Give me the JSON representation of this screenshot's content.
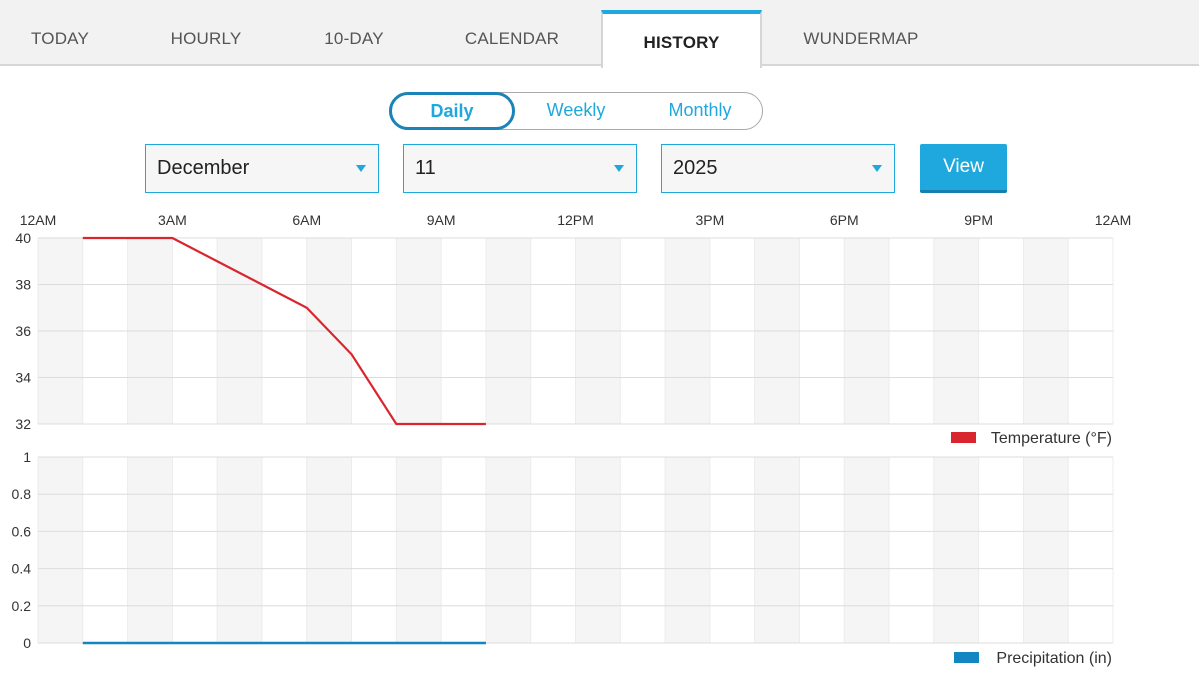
{
  "tabs": [
    {
      "label": "TODAY",
      "active": false
    },
    {
      "label": "HOURLY",
      "active": false
    },
    {
      "label": "10-DAY",
      "active": false
    },
    {
      "label": "CALENDAR",
      "active": false
    },
    {
      "label": "HISTORY",
      "active": true
    },
    {
      "label": "WUNDERMAP",
      "active": false
    }
  ],
  "period": {
    "options": [
      "Daily",
      "Weekly",
      "Monthly"
    ],
    "selected": "Daily"
  },
  "date": {
    "month": "December",
    "day": "11",
    "year": "2025"
  },
  "view_label": "View",
  "colors": {
    "accent": "#1fa8de",
    "temperature": "#d9262e",
    "precipitation": "#1186c0"
  },
  "chart_data": [
    {
      "type": "line",
      "x_tick_labels": [
        "12AM",
        "3AM",
        "6AM",
        "9AM",
        "12PM",
        "3PM",
        "6PM",
        "9PM",
        "12AM"
      ],
      "xlim": [
        0,
        24
      ],
      "ylim": [
        32,
        40
      ],
      "y_ticks": [
        32,
        34,
        36,
        38,
        40
      ],
      "series": [
        {
          "name": "Temperature (°F)",
          "x": [
            1,
            2,
            3,
            4,
            5,
            6,
            7,
            8,
            9,
            10
          ],
          "values": [
            40,
            40,
            40,
            39,
            38,
            37,
            35,
            32,
            32,
            32
          ]
        }
      ],
      "legend": "bottom-right",
      "grid": true
    },
    {
      "type": "area",
      "xlim": [
        0,
        24
      ],
      "ylim": [
        0,
        1
      ],
      "y_ticks": [
        "0",
        "0.2",
        "0.4",
        "0.6",
        "0.8",
        "1"
      ],
      "series": [
        {
          "name": "Precipitation (in)",
          "x": [
            1,
            2,
            3,
            4,
            5,
            6,
            7,
            8,
            9,
            10
          ],
          "values": [
            0,
            0,
            0,
            0,
            0,
            0,
            0,
            0,
            0,
            0
          ]
        }
      ],
      "legend": "bottom-right",
      "grid": true
    }
  ]
}
